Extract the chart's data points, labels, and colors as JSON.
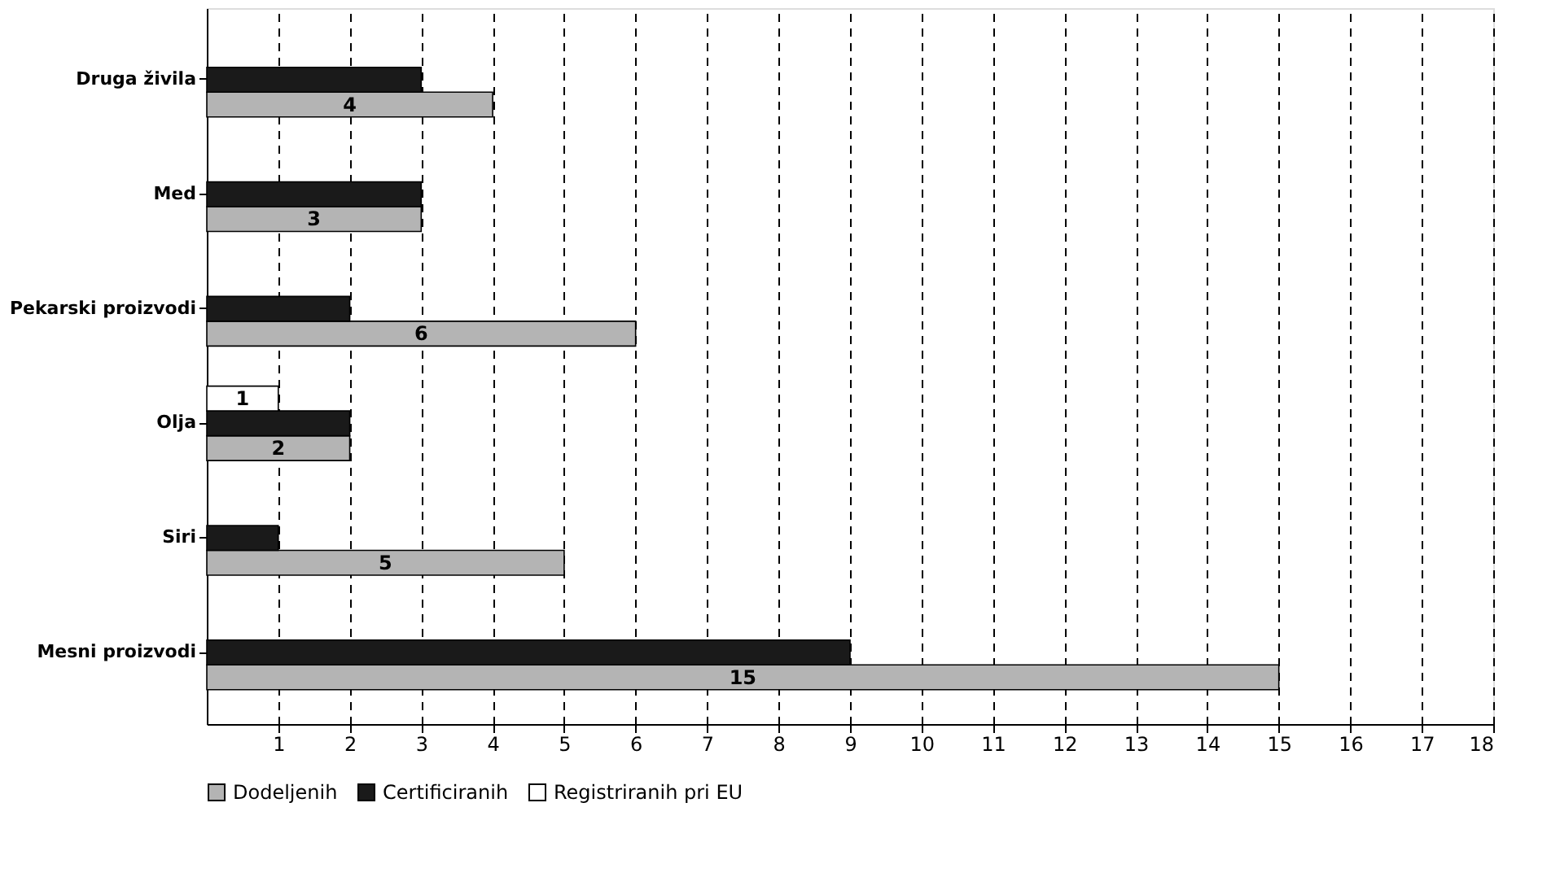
{
  "chart_data": {
    "type": "bar",
    "orientation": "horizontal",
    "categories": [
      "Druga živila",
      "Med",
      "Pekarski proizvodi",
      "Olja",
      "Siri",
      "Mesni proizvodi"
    ],
    "series": [
      {
        "name": "Dodeljenih",
        "color": "#b4b4b4",
        "values": [
          4,
          3,
          6,
          2,
          5,
          15
        ],
        "value_labels": [
          "4",
          "3",
          "6",
          "2",
          "5",
          "15"
        ]
      },
      {
        "name": "Certificiranih",
        "color": "#1a1a1a",
        "values": [
          3,
          3,
          2,
          2,
          1,
          9
        ]
      },
      {
        "name": "Registriranih pri EU",
        "color": "#ffffff",
        "values": [
          null,
          null,
          null,
          1,
          null,
          null
        ],
        "value_labels": [
          null,
          null,
          null,
          "1",
          null,
          null
        ]
      }
    ],
    "xlim": [
      0,
      18
    ],
    "xticks": [
      1,
      2,
      3,
      4,
      5,
      6,
      7,
      8,
      9,
      10,
      11,
      12,
      13,
      14,
      15,
      16,
      17,
      18
    ],
    "grid": "x",
    "legend": "bottom"
  }
}
